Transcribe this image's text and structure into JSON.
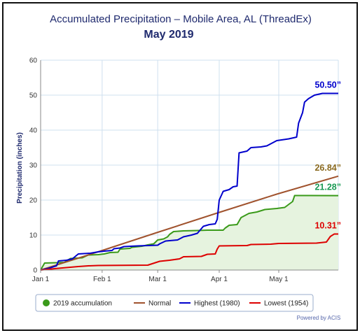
{
  "chart_data": {
    "type": "line",
    "title": "Accumulated Precipitation – Mobile Area, AL (ThreadEx)",
    "subtitle": "May 2019",
    "ylabel": "Precipitation (inches)",
    "xlabel": "",
    "ylim": [
      0,
      60
    ],
    "yticks": [
      "0",
      "10",
      "20",
      "30",
      "40",
      "50",
      "60"
    ],
    "xlim_days": [
      1,
      151
    ],
    "xticks": [
      {
        "label": "Jan 1",
        "day": 1
      },
      {
        "label": "Feb 1",
        "day": 32
      },
      {
        "label": "Mar 1",
        "day": 60
      },
      {
        "label": "Apr 1",
        "day": 91
      },
      {
        "label": "May 1",
        "day": 121
      }
    ],
    "grid": true,
    "legend_position": "bottom",
    "credit": "Powered by ACIS",
    "series": [
      {
        "name": "2019 accumulation",
        "key": "s2019",
        "color": "#3a9a1a",
        "fill": "#e6f3df",
        "end_label": "21.28”",
        "end_label_color": "#1a9a55",
        "points": [
          [
            1,
            0
          ],
          [
            3,
            2.0
          ],
          [
            9,
            2.1
          ],
          [
            13,
            2.2
          ],
          [
            16,
            3.3
          ],
          [
            22,
            3.5
          ],
          [
            25,
            4.3
          ],
          [
            30,
            4.4
          ],
          [
            33,
            4.6
          ],
          [
            36,
            5.0
          ],
          [
            40,
            5.1
          ],
          [
            41,
            6.0
          ],
          [
            46,
            6.2
          ],
          [
            47,
            6.5
          ],
          [
            52,
            6.8
          ],
          [
            55,
            7.2
          ],
          [
            58,
            7.5
          ],
          [
            60,
            8.6
          ],
          [
            63,
            8.9
          ],
          [
            65,
            9.5
          ],
          [
            66,
            10.2
          ],
          [
            68,
            11.0
          ],
          [
            73,
            11.2
          ],
          [
            80,
            11.3
          ],
          [
            85,
            11.4
          ],
          [
            93,
            11.4
          ],
          [
            94,
            12.0
          ],
          [
            96,
            12.8
          ],
          [
            100,
            13.0
          ],
          [
            102,
            15.0
          ],
          [
            104,
            15.6
          ],
          [
            106,
            16.2
          ],
          [
            110,
            16.6
          ],
          [
            114,
            17.3
          ],
          [
            120,
            17.6
          ],
          [
            124,
            17.9
          ],
          [
            128,
            19.6
          ],
          [
            129,
            21.3
          ],
          [
            136,
            21.3
          ],
          [
            151,
            21.28
          ]
        ]
      },
      {
        "name": "Normal",
        "key": "normal",
        "color": "#a0522d",
        "end_label": "26.84”",
        "end_label_color": "#8a6a20",
        "points": [
          [
            1,
            0
          ],
          [
            31,
            5.4
          ],
          [
            59,
            10.6
          ],
          [
            90,
            16.3
          ],
          [
            120,
            21.7
          ],
          [
            151,
            26.84
          ]
        ]
      },
      {
        "name": "Highest (1980)",
        "key": "high",
        "color": "#0000cc",
        "end_label": "50.50”",
        "end_label_color": "#0000cc",
        "points": [
          [
            1,
            0
          ],
          [
            5,
            0.5
          ],
          [
            9,
            1.2
          ],
          [
            10,
            2.6
          ],
          [
            14,
            2.8
          ],
          [
            17,
            3.2
          ],
          [
            20,
            4.6
          ],
          [
            26,
            4.8
          ],
          [
            30,
            5.2
          ],
          [
            33,
            5.4
          ],
          [
            37,
            5.6
          ],
          [
            38,
            6.1
          ],
          [
            41,
            6.3
          ],
          [
            43,
            6.7
          ],
          [
            50,
            6.9
          ],
          [
            55,
            7.0
          ],
          [
            60,
            7.1
          ],
          [
            61,
            7.5
          ],
          [
            64,
            8.3
          ],
          [
            70,
            8.6
          ],
          [
            73,
            9.5
          ],
          [
            77,
            10.0
          ],
          [
            80,
            10.5
          ],
          [
            83,
            12.5
          ],
          [
            86,
            13.0
          ],
          [
            89,
            13.2
          ],
          [
            90,
            14.5
          ],
          [
            91,
            20.0
          ],
          [
            93,
            22.5
          ],
          [
            96,
            23.0
          ],
          [
            98,
            23.8
          ],
          [
            100,
            24.0
          ],
          [
            101,
            33.5
          ],
          [
            105,
            34.0
          ],
          [
            107,
            35.0
          ],
          [
            112,
            35.2
          ],
          [
            115,
            35.5
          ],
          [
            120,
            37.0
          ],
          [
            126,
            37.5
          ],
          [
            130,
            38.0
          ],
          [
            131,
            42.0
          ],
          [
            133,
            45.0
          ],
          [
            134,
            48.0
          ],
          [
            136,
            49.0
          ],
          [
            139,
            50.0
          ],
          [
            143,
            50.5
          ],
          [
            151,
            50.5
          ]
        ]
      },
      {
        "name": "Lowest (1954)",
        "key": "low",
        "color": "#dd0000",
        "end_label": "10.31”",
        "end_label_color": "#dd0000",
        "points": [
          [
            1,
            0
          ],
          [
            10,
            0.5
          ],
          [
            20,
            1.0
          ],
          [
            25,
            1.2
          ],
          [
            30,
            1.3
          ],
          [
            55,
            1.4
          ],
          [
            61,
            2.5
          ],
          [
            66,
            2.8
          ],
          [
            71,
            3.2
          ],
          [
            73,
            3.8
          ],
          [
            82,
            3.9
          ],
          [
            85,
            4.5
          ],
          [
            89,
            4.6
          ],
          [
            90,
            6.0
          ],
          [
            91,
            6.9
          ],
          [
            105,
            7.0
          ],
          [
            107,
            7.3
          ],
          [
            117,
            7.4
          ],
          [
            121,
            7.6
          ],
          [
            140,
            7.7
          ],
          [
            145,
            8.0
          ],
          [
            147,
            9.6
          ],
          [
            149,
            10.31
          ],
          [
            151,
            10.31
          ]
        ]
      }
    ]
  }
}
